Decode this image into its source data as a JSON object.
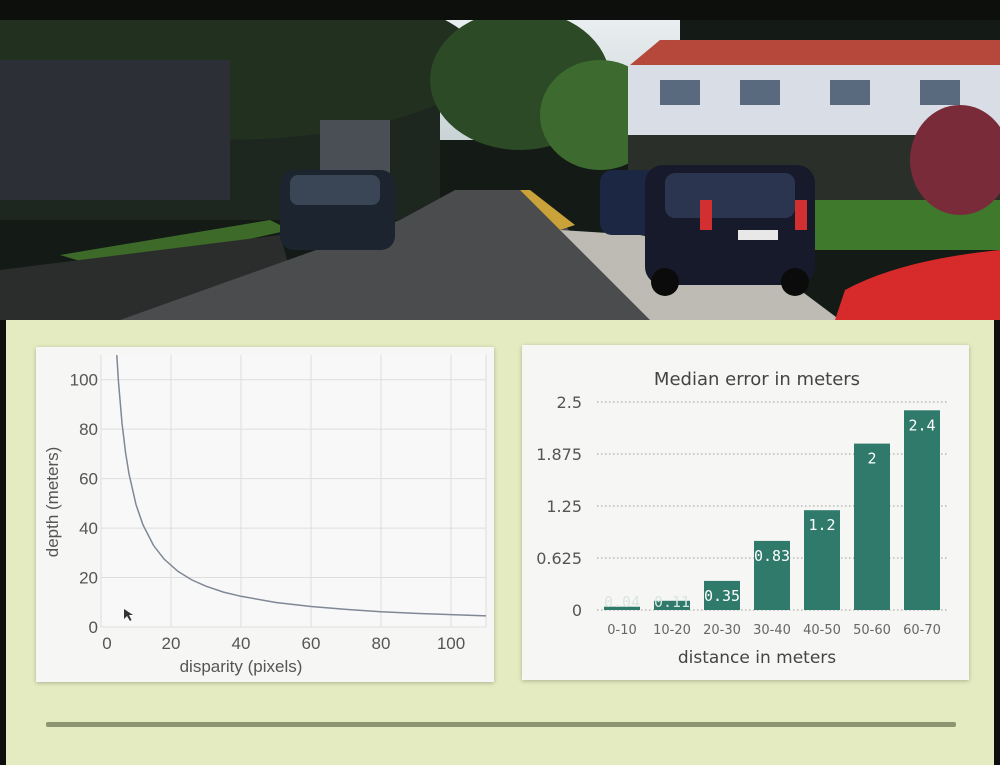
{
  "colors": {
    "slide_background": "#e4ebc0",
    "bar_fill": "#2f7a6b",
    "curve_stroke": "#7f8894"
  },
  "photo": {
    "description_icon": "street-scene-photo"
  },
  "chart_data": [
    {
      "type": "line",
      "title": "",
      "xlabel": "disparity (pixels)",
      "ylabel": "depth (meters)",
      "xlim": [
        0,
        110
      ],
      "ylim": [
        0,
        110
      ],
      "xticks": [
        0,
        20,
        40,
        60,
        80,
        100
      ],
      "yticks": [
        0,
        20,
        40,
        60,
        80,
        100
      ],
      "grid": true,
      "series": [
        {
          "x": [
            4.5,
            5,
            6,
            7,
            8,
            10,
            12,
            15,
            18,
            22,
            26,
            30,
            35,
            40,
            50,
            60,
            70,
            80,
            90,
            100,
            110
          ],
          "y": [
            110,
            99,
            82.5,
            70.7,
            61.9,
            49.5,
            41.3,
            33,
            27.5,
            22.5,
            19,
            16.5,
            14.1,
            12.4,
            9.9,
            8.3,
            7.1,
            6.2,
            5.5,
            5,
            4.5
          ]
        }
      ]
    },
    {
      "type": "bar",
      "title": "Median error in meters",
      "xlabel": "distance in meters",
      "ylabel": "",
      "categories": [
        "0-10",
        "10-20",
        "20-30",
        "30-40",
        "40-50",
        "50-60",
        "60-70"
      ],
      "values": [
        0.04,
        0.11,
        0.35,
        0.83,
        1.2,
        2,
        2.4
      ],
      "data_labels": [
        "0.04",
        "0.11",
        "0.35",
        "0.83",
        "1.2",
        "2",
        "2.4"
      ],
      "ylim": [
        0,
        2.5
      ],
      "yticks": [
        0,
        0.625,
        1.25,
        1.875,
        2.5
      ],
      "ytick_labels": [
        "0",
        "0.625",
        "1.25",
        "1.875",
        "2.5"
      ],
      "grid": "dotted horizontal"
    }
  ]
}
